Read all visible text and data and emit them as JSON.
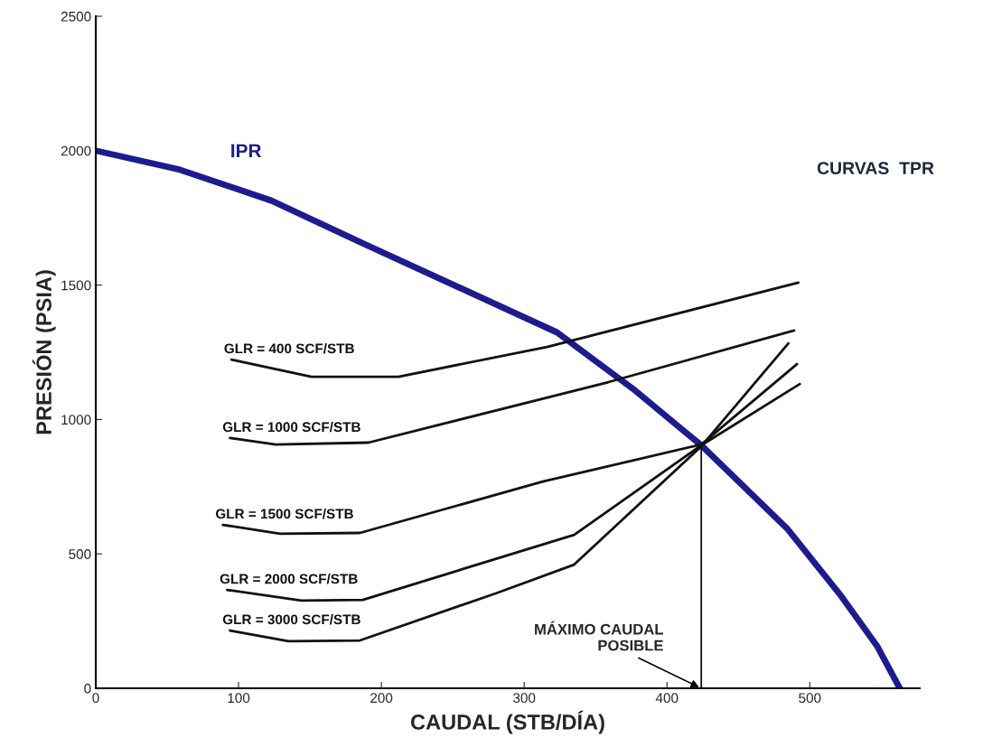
{
  "chart_data": {
    "type": "line",
    "xlabel": "CAUDAL (STB/DÍA)",
    "ylabel": "PRESIÓN (PSIA)",
    "xlim": [
      0,
      577
    ],
    "ylim": [
      0,
      2500
    ],
    "xticks": [
      0,
      100,
      200,
      300,
      400,
      500
    ],
    "yticks": [
      0,
      500,
      1000,
      1500,
      2000,
      2500
    ],
    "grid": false,
    "legend": false,
    "series": [
      {
        "name": "IPR",
        "color": "#1c1c8e",
        "x": [
          0,
          59,
          123,
          188,
          323,
          376,
          424,
          484,
          522,
          547,
          563
        ],
        "values": [
          2000,
          1929,
          1814,
          1653,
          1324,
          1115,
          904,
          595,
          343,
          158,
          0
        ]
      },
      {
        "name": "GLR = 400 SCF/STB",
        "color": "#111111",
        "x": [
          95,
          151,
          212,
          316,
          492
        ],
        "values": [
          1223,
          1159,
          1159,
          1270,
          1509
        ]
      },
      {
        "name": "GLR = 1000 SCF/STB",
        "color": "#111111",
        "x": [
          94,
          126,
          191,
          359,
          489
        ],
        "values": [
          931,
          907,
          914,
          1139,
          1331
        ]
      },
      {
        "name": "GLR = 1500 SCF/STB",
        "color": "#111111",
        "x": [
          89,
          129,
          185,
          313,
          424,
          491
        ],
        "values": [
          608,
          575,
          578,
          769,
          907,
          1206
        ]
      },
      {
        "name": "GLR = 2000 SCF/STB",
        "color": "#111111",
        "x": [
          92,
          144,
          187,
          335,
          424,
          493
        ],
        "values": [
          366,
          326,
          329,
          571,
          904,
          1132
        ]
      },
      {
        "name": "GLR = 3000 SCF/STB",
        "color": "#111111",
        "x": [
          94,
          135,
          185,
          280,
          335,
          424,
          485
        ],
        "values": [
          215,
          175,
          178,
          353,
          460,
          900,
          1283
        ]
      },
      {
        "color": "#111111",
        "x": [
          424,
          424
        ],
        "values": [
          0,
          904
        ]
      }
    ],
    "annotations": [
      "CURVAS  TPR",
      {
        "text": "MÁXIMO CAUDAL\nPOSIBLE",
        "x": 424,
        "y": 0
      }
    ]
  }
}
